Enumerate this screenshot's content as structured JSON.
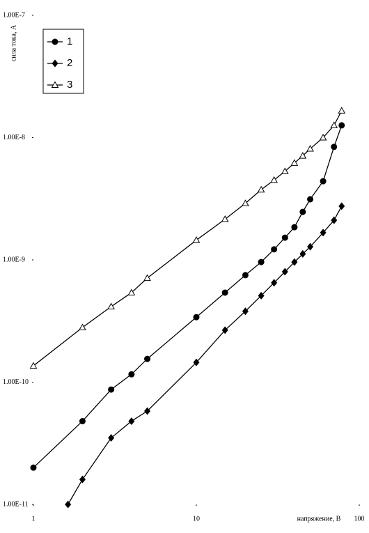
{
  "chart_data": {
    "type": "line",
    "x_label": "напряжение, В",
    "y_label": "сила тока, А",
    "xscale": "log",
    "yscale": "log",
    "grid": false,
    "legend": "upper left",
    "xlim": [
      1,
      100
    ],
    "xticks": [
      1,
      10,
      100
    ],
    "ylim": [
      1e-11,
      1e-07
    ],
    "yticks": [
      {
        "value": 1e-11,
        "label": "1.00E-11"
      },
      {
        "value": 1e-10,
        "label": "1.00E-10"
      },
      {
        "value": 1e-09,
        "label": "1.00E-9"
      },
      {
        "value": 1e-08,
        "label": "1.00E-8"
      },
      {
        "value": 1e-07,
        "label": "1.00E-7"
      }
    ],
    "series": [
      {
        "name": "1",
        "color": "#000000",
        "marker": "circle",
        "x": [
          1,
          2,
          3,
          4,
          5,
          10,
          15,
          20,
          25,
          30,
          35,
          40,
          45,
          50,
          60,
          70,
          78
        ],
        "values": [
          2e-11,
          4.8e-11,
          8.7e-11,
          1.16e-10,
          1.55e-10,
          3.4e-10,
          5.4e-10,
          7.5e-10,
          9.6e-10,
          1.22e-09,
          1.52e-09,
          1.85e-09,
          2.47e-09,
          3.13e-09,
          4.4e-09,
          8.4e-09,
          1.26e-08
        ]
      },
      {
        "name": "2",
        "color": "#000000",
        "marker": "diamond",
        "x": [
          1.63,
          2,
          3,
          4,
          5,
          10,
          15,
          20,
          25,
          30,
          35,
          40,
          45,
          50,
          60,
          70,
          78
        ],
        "values": [
          1e-11,
          1.6e-11,
          3.5e-11,
          4.8e-11,
          5.8e-11,
          1.45e-10,
          2.66e-10,
          3.8e-10,
          5.1e-10,
          6.5e-10,
          8e-10,
          9.6e-10,
          1.12e-09,
          1.28e-09,
          1.67e-09,
          2.11e-09,
          2.75e-09
        ]
      },
      {
        "name": "3",
        "color": "#000000",
        "marker": "triangle",
        "x": [
          1,
          2,
          3,
          4,
          5,
          10,
          15,
          20,
          25,
          30,
          35,
          40,
          45,
          50,
          60,
          70,
          78
        ],
        "values": [
          1.36e-10,
          2.8e-10,
          4.15e-10,
          5.4e-10,
          7.1e-10,
          1.45e-09,
          2.15e-09,
          2.9e-09,
          3.75e-09,
          4.5e-09,
          5.3e-09,
          6.2e-09,
          7.1e-09,
          8.1e-09,
          1e-08,
          1.26e-08,
          1.66e-08
        ]
      }
    ]
  }
}
